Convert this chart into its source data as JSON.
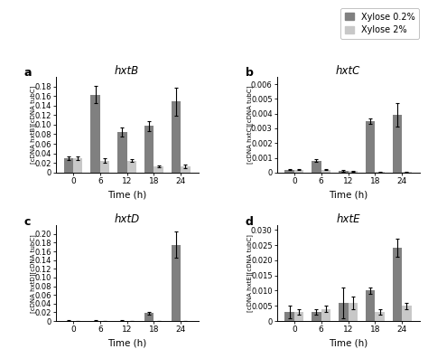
{
  "time_points": [
    0,
    6,
    12,
    18,
    24
  ],
  "panel_a": {
    "title": "hxtB",
    "ylabel": "[cDNA hxtB][cDNA tubC]",
    "ylim": [
      0,
      0.2
    ],
    "yticks": [
      0,
      0.02,
      0.04,
      0.06,
      0.08,
      0.1,
      0.12,
      0.14,
      0.16,
      0.18
    ],
    "ytick_labels": [
      "0",
      "0.02",
      "0.04",
      "0.06",
      "0.08",
      "0.10",
      "0.12",
      "0.14",
      "0.16",
      "0.18"
    ],
    "dark_vals": [
      0.03,
      0.163,
      0.085,
      0.097,
      0.148
    ],
    "light_vals": [
      0.03,
      0.025,
      0.025,
      0.013,
      0.013
    ],
    "dark_err": [
      0.003,
      0.018,
      0.01,
      0.01,
      0.03
    ],
    "light_err": [
      0.003,
      0.005,
      0.003,
      0.002,
      0.003
    ]
  },
  "panel_b": {
    "title": "hxtC",
    "ylabel": "[cDNA hxtC][cDNA tubC]",
    "ylim": [
      0,
      0.0065
    ],
    "yticks": [
      0,
      0.001,
      0.002,
      0.003,
      0.004,
      0.005,
      0.006
    ],
    "ytick_labels": [
      "0",
      "0.001",
      "0.002",
      "0.003",
      "0.004",
      "0.005",
      "0.006"
    ],
    "dark_vals": [
      0.0002,
      0.0008,
      0.0001,
      0.0035,
      0.0039
    ],
    "light_vals": [
      0.0002,
      0.0002,
      0.0001,
      5e-05,
      5e-05
    ],
    "dark_err": [
      5e-05,
      0.0001,
      5e-05,
      0.0002,
      0.0008
    ],
    "light_err": [
      3e-05,
      5e-05,
      3e-05,
      3e-05,
      3e-05
    ]
  },
  "panel_c": {
    "title": "hxtD",
    "ylabel": "[cDNA hxtD][cDNA tubC]",
    "ylim": [
      0,
      0.22
    ],
    "yticks": [
      0,
      0.02,
      0.04,
      0.06,
      0.08,
      0.1,
      0.12,
      0.14,
      0.16,
      0.18,
      0.2
    ],
    "ytick_labels": [
      "0",
      "0.02",
      "0.04",
      "0.06",
      "0.08",
      "0.10",
      "0.12",
      "0.14",
      "0.16",
      "0.18",
      "0.20"
    ],
    "dark_vals": [
      0.001,
      0.001,
      0.001,
      0.018,
      0.175
    ],
    "light_vals": [
      0.001,
      0.001,
      0.001,
      0.001,
      0.001
    ],
    "dark_err": [
      0.0005,
      0.0005,
      0.0005,
      0.003,
      0.03
    ],
    "light_err": [
      0.0002,
      0.0002,
      0.0002,
      0.0002,
      0.0002
    ]
  },
  "panel_d": {
    "title": "hxtE",
    "ylabel": "[cDNA hxtE][cDNA tubC]",
    "ylim": [
      0,
      0.0315
    ],
    "yticks": [
      0,
      0.005,
      0.01,
      0.015,
      0.02,
      0.025,
      0.03
    ],
    "ytick_labels": [
      "0",
      "0.005",
      "0.010",
      "0.015",
      "0.020",
      "0.025",
      "0.030"
    ],
    "dark_vals": [
      0.003,
      0.003,
      0.006,
      0.01,
      0.024
    ],
    "light_vals": [
      0.003,
      0.004,
      0.006,
      0.003,
      0.005
    ],
    "dark_err": [
      0.002,
      0.001,
      0.005,
      0.001,
      0.003
    ],
    "light_err": [
      0.001,
      0.001,
      0.002,
      0.001,
      0.001
    ]
  },
  "dark_color": "#808080",
  "light_color": "#c8c8c8",
  "bar_width": 0.35,
  "xlabel": "Time (h)",
  "legend_labels": [
    "Xylose 0.2%",
    "Xylose 2%"
  ],
  "panel_labels": [
    "a",
    "b",
    "c",
    "d"
  ]
}
